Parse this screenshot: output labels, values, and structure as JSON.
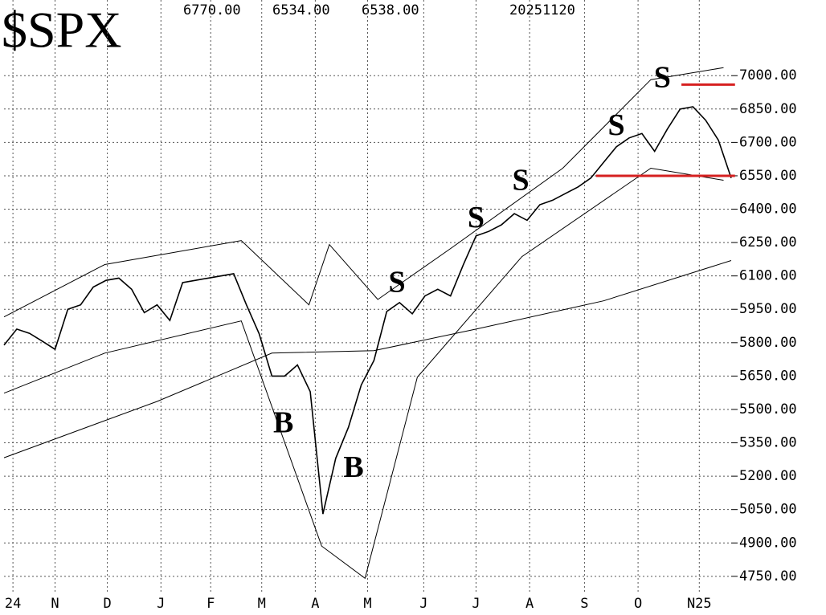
{
  "chart_data": {
    "type": "line",
    "title": "$SPX",
    "header_values": [
      "6770.00",
      "6534.00",
      "6538.00",
      "20251120"
    ],
    "xlim": [
      0,
      57
    ],
    "xticks": [
      {
        "value": 0.7,
        "label": "24"
      },
      {
        "value": 4,
        "label": "N"
      },
      {
        "value": 8.1,
        "label": "D"
      },
      {
        "value": 12.3,
        "label": "J"
      },
      {
        "value": 16.2,
        "label": "F"
      },
      {
        "value": 20.2,
        "label": "M"
      },
      {
        "value": 24.4,
        "label": "A"
      },
      {
        "value": 28.5,
        "label": "M"
      },
      {
        "value": 32.9,
        "label": "J"
      },
      {
        "value": 37,
        "label": "J"
      },
      {
        "value": 41.2,
        "label": "A"
      },
      {
        "value": 45.5,
        "label": "S"
      },
      {
        "value": 49.7,
        "label": "O"
      },
      {
        "value": 54.5,
        "label": "N25"
      }
    ],
    "ylim": [
      4670,
      7340
    ],
    "yticks": [
      {
        "value": 4750,
        "label": "4750.00"
      },
      {
        "value": 4900,
        "label": "4900.00"
      },
      {
        "value": 5050,
        "label": "5050.00"
      },
      {
        "value": 5200,
        "label": "5200.00"
      },
      {
        "value": 5350,
        "label": "5350.00"
      },
      {
        "value": 5500,
        "label": "5500.00"
      },
      {
        "value": 5650,
        "label": "5650.00"
      },
      {
        "value": 5800,
        "label": "5800.00"
      },
      {
        "value": 5950,
        "label": "5950.00"
      },
      {
        "value": 6100,
        "label": "6100.00"
      },
      {
        "value": 6250,
        "label": "6250.00"
      },
      {
        "value": 6400,
        "label": "6400.00"
      },
      {
        "value": 6550,
        "label": "6550.00"
      },
      {
        "value": 6700,
        "label": "6700.00"
      },
      {
        "value": 6850,
        "label": "6850.00"
      },
      {
        "value": 7000,
        "label": "7000.00"
      }
    ],
    "grid": true,
    "series": [
      {
        "color": "#000000",
        "x": [
          0,
          1,
          2,
          3,
          4,
          5,
          6,
          7,
          8,
          9,
          10,
          11,
          12,
          13,
          14,
          15,
          16,
          17,
          18,
          19,
          20,
          21,
          22,
          23,
          24,
          25,
          26,
          27,
          28,
          29,
          30,
          31,
          32,
          33,
          34,
          35,
          36,
          37,
          38,
          39,
          40,
          41,
          42,
          43,
          44,
          45,
          46,
          47,
          48,
          49,
          50,
          51,
          52,
          53,
          54,
          55,
          56,
          57
        ],
        "values": [
          5789,
          5861,
          5842,
          5807,
          5770,
          5950,
          5970,
          6050,
          6080,
          6090,
          6040,
          5935,
          5970,
          5900,
          6070,
          6080,
          6090,
          6100,
          6110,
          5970,
          5840,
          5650,
          5650,
          5700,
          5580,
          5030,
          5280,
          5420,
          5610,
          5720,
          5940,
          5980,
          5930,
          6010,
          6040,
          6010,
          6150,
          6280,
          6300,
          6330,
          6380,
          6350,
          6420,
          6440,
          6470,
          6500,
          6540,
          6610,
          6680,
          6720,
          6740,
          6660,
          6760,
          6850,
          6860,
          6800,
          6710,
          6540
        ]
      },
      {
        "color": "#000000",
        "x": [
          0,
          12,
          21,
          29,
          37,
          47,
          57
        ],
        "values": [
          5283,
          5536,
          5753,
          5764,
          5861,
          5988,
          6169
        ]
      },
      {
        "color": "#000000",
        "x": [
          0,
          7.9,
          18.6,
          23.9,
          25.5,
          29.3,
          35,
          43.8,
          50.7,
          56.4
        ],
        "values": [
          5916,
          6151,
          6259,
          5970,
          6241,
          5994,
          6223,
          6584,
          6982,
          7036
        ]
      },
      {
        "color": "#000000",
        "x": [
          0,
          7.9,
          18.6,
          24.9,
          28.3,
          32.4,
          40.6,
          50.7,
          56.4
        ],
        "values": [
          5573,
          5753,
          5898,
          4886,
          4741,
          5645,
          6187,
          6584,
          6530
        ]
      }
    ],
    "hlines": [
      {
        "y": 6960,
        "x": [
          53.1,
          57.3
        ],
        "color": "#d62020"
      },
      {
        "y": 6550,
        "x": [
          46.4,
          57.3
        ],
        "color": "#d62020"
      }
    ],
    "annotations": [
      {
        "text": "B",
        "color": "#1f7ab8",
        "x": 21.9,
        "y": 5428
      },
      {
        "text": "B",
        "color": "#e02020",
        "x": 27.4,
        "y": 5229
      },
      {
        "text": "S",
        "color": "#1f7ab8",
        "x": 30.8,
        "y": 6060
      },
      {
        "text": "S",
        "color": "#1f7ab8",
        "x": 37,
        "y": 6350
      },
      {
        "text": "S",
        "color": "#1f7ab8",
        "x": 40.5,
        "y": 6519
      },
      {
        "text": "S",
        "color": "#1f7ab8",
        "x": 48,
        "y": 6765
      },
      {
        "text": "S",
        "color": "#3a9a4a",
        "x": 51.6,
        "y": 6980
      }
    ]
  }
}
